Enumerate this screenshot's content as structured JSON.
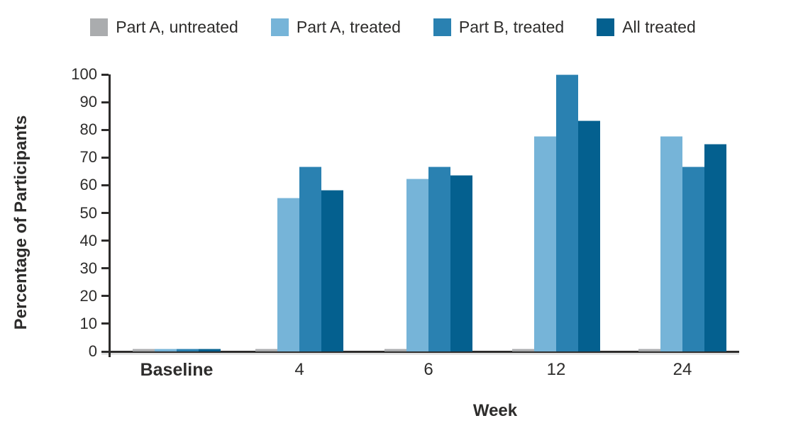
{
  "figure": {
    "type": "grouped-bar-chart"
  },
  "colors": {
    "part_a_untreated": "#aaacae",
    "part_a_treated": "#76b4d8",
    "part_b_treated": "#2a81b1",
    "all_treated": "#04608f",
    "axis": "#2d2c2b",
    "background": "#ffffff"
  },
  "legend": {
    "items": [
      {
        "label": "Part A, untreated",
        "color": "#aaacae"
      },
      {
        "label": "Part A, treated",
        "color": "#76b4d8"
      },
      {
        "label": "Part B, treated",
        "color": "#2a81b1"
      },
      {
        "label": "All treated",
        "color": "#04608f"
      }
    ]
  },
  "chart_data": {
    "type": "bar",
    "title": "",
    "xlabel": "Week",
    "ylabel": "Percentage of Participants",
    "categories": [
      "Baseline",
      "4",
      "6",
      "12",
      "24"
    ],
    "series": [
      {
        "name": "Part A, untreated",
        "color": "#aaacae",
        "values": [
          1,
          1,
          1,
          1,
          1
        ]
      },
      {
        "name": "Part A, treated",
        "color": "#76b4d8",
        "values": [
          1,
          55.6,
          62.5,
          77.8,
          77.8
        ]
      },
      {
        "name": "Part B, treated",
        "color": "#2a81b1",
        "values": [
          1,
          66.7,
          66.7,
          100,
          66.7
        ]
      },
      {
        "name": "All treated",
        "color": "#04608f",
        "values": [
          1,
          58.3,
          63.6,
          83.3,
          75
        ]
      }
    ],
    "ylim": [
      0,
      100
    ],
    "yticks": [
      0,
      10,
      20,
      30,
      40,
      50,
      60,
      70,
      80,
      90,
      100
    ],
    "grid": false,
    "legend_position": "top"
  }
}
